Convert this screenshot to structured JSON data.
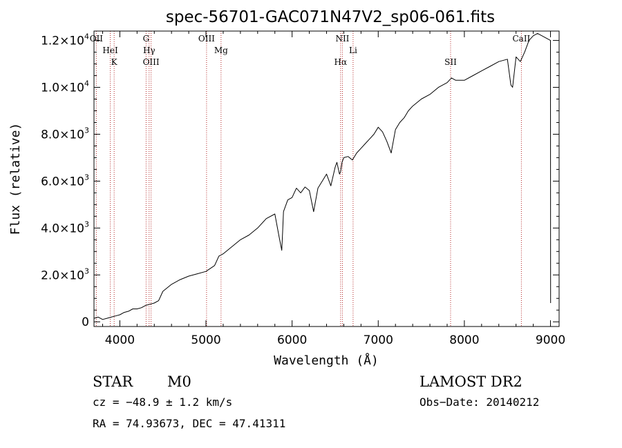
{
  "chart_data": {
    "type": "line",
    "title": "spec-56701-GAC071N47V2_sp06-061.fits",
    "xlabel": "Wavelength (Å)",
    "ylabel": "Flux (relative)",
    "xlim": [
      3700,
      9100
    ],
    "ylim": [
      -200,
      12400
    ],
    "x_ticks": [
      4000,
      5000,
      6000,
      7000,
      8000,
      9000
    ],
    "x_tick_labels": [
      "4000",
      "5000",
      "6000",
      "7000",
      "8000",
      "9000"
    ],
    "y_ticks": [
      {
        "value": 0,
        "mantissa": "0",
        "exp": ""
      },
      {
        "value": 2000,
        "mantissa": "2.0×10",
        "exp": "3"
      },
      {
        "value": 4000,
        "mantissa": "4.0×10",
        "exp": "3"
      },
      {
        "value": 6000,
        "mantissa": "6.0×10",
        "exp": "3"
      },
      {
        "value": 8000,
        "mantissa": "8.0×10",
        "exp": "3"
      },
      {
        "value": 10000,
        "mantissa": "1.0×10",
        "exp": "4"
      },
      {
        "value": 12000,
        "mantissa": "1.2×10",
        "exp": "4"
      }
    ],
    "spectrum": {
      "x": [
        3700,
        3750,
        3800,
        3850,
        3900,
        3950,
        4000,
        4050,
        4100,
        4150,
        4200,
        4250,
        4300,
        4350,
        4400,
        4450,
        4500,
        4600,
        4700,
        4800,
        4900,
        5000,
        5100,
        5150,
        5200,
        5300,
        5400,
        5500,
        5600,
        5700,
        5800,
        5850,
        5880,
        5890,
        5900,
        5950,
        6000,
        6050,
        6100,
        6150,
        6200,
        6250,
        6300,
        6350,
        6400,
        6450,
        6500,
        6520,
        6550,
        6563,
        6580,
        6600,
        6650,
        6700,
        6750,
        6800,
        6850,
        6900,
        6950,
        7000,
        7050,
        7100,
        7150,
        7200,
        7250,
        7300,
        7350,
        7400,
        7500,
        7600,
        7700,
        7800,
        7850,
        7900,
        8000,
        8100,
        8200,
        8300,
        8400,
        8500,
        8540,
        8560,
        8600,
        8650,
        8700,
        8750,
        8800,
        8850,
        8900,
        8950,
        9000,
        9001
      ],
      "y": [
        150,
        200,
        100,
        150,
        200,
        250,
        300,
        400,
        450,
        550,
        550,
        600,
        700,
        750,
        800,
        900,
        1300,
        1600,
        1800,
        1950,
        2050,
        2150,
        2400,
        2800,
        2900,
        3200,
        3500,
        3700,
        4000,
        4400,
        4600,
        3600,
        3050,
        3800,
        4700,
        5200,
        5300,
        5700,
        5500,
        5750,
        5600,
        4700,
        5700,
        6000,
        6300,
        5800,
        6600,
        6800,
        6300,
        6400,
        6800,
        7000,
        7050,
        6900,
        7200,
        7400,
        7600,
        7800,
        8000,
        8300,
        8100,
        7700,
        7200,
        8200,
        8500,
        8700,
        9000,
        9200,
        9500,
        9700,
        10000,
        10200,
        10400,
        10300,
        10300,
        10500,
        10700,
        10900,
        11100,
        11200,
        10100,
        10000,
        11300,
        11100,
        11500,
        12000,
        12200,
        12300,
        12200,
        12100,
        12000,
        800
      ]
    },
    "lines": [
      {
        "label": "OII",
        "x": 3727
      },
      {
        "label": "HeI",
        "x": 3889
      },
      {
        "label": "K",
        "x": 3934
      },
      {
        "label": "G",
        "x": 4305
      },
      {
        "label": "Hγ",
        "x": 4340
      },
      {
        "label": "OIII",
        "x": 4363
      },
      {
        "label": "OIII",
        "x": 5007
      },
      {
        "label": "Mg",
        "x": 5175
      },
      {
        "label": "Hα",
        "x": 6563
      },
      {
        "label": "NII",
        "x": 6584
      },
      {
        "label": "Li",
        "x": 6708
      },
      {
        "label": "SII",
        "x": 7840
      },
      {
        "label": "CaII",
        "x": 8662
      }
    ],
    "grid": false,
    "legend": "none"
  },
  "info": {
    "class_label": "STAR",
    "subclass": "M0",
    "survey": "LAMOST DR2",
    "redshift": "cz = −48.9 ± 1.2 km/s",
    "obs_date": "Obs−Date: 20140212",
    "coords": "RA =  74.93673, DEC =  47.41311"
  },
  "colors": {
    "spectrum": "#000000",
    "line_marker": "#b22222",
    "axis": "#000000"
  }
}
